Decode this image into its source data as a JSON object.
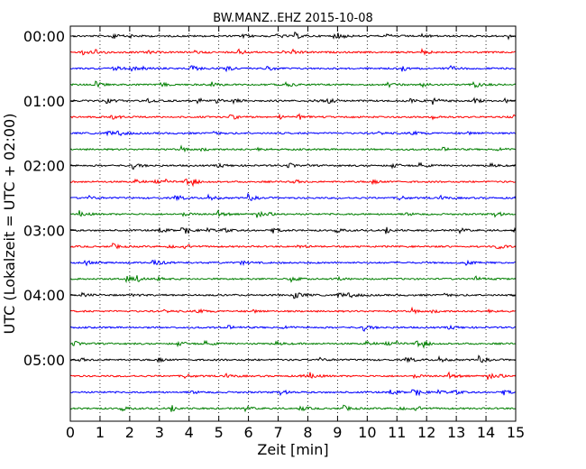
{
  "chart_data": {
    "type": "line",
    "title": "BW.MANZ..EHZ 2015-10-08",
    "xlabel": "Zeit  [min]",
    "ylabel": "UTC (Lokalzeit = UTC + 02:00)",
    "xlim": [
      0,
      15
    ],
    "xticks": [
      "0",
      "1",
      "2",
      "3",
      "4",
      "5",
      "6",
      "7",
      "8",
      "9",
      "10",
      "11",
      "12",
      "13",
      "14",
      "15"
    ],
    "ytick_labels": [
      "00:00",
      "01:00",
      "02:00",
      "03:00",
      "04:00",
      "05:00"
    ],
    "grid": "vertical dotted lines at each minute",
    "traces_per_hour": 4,
    "trace_count": 24,
    "trace_colors": [
      "#000000",
      "#ff0000",
      "#0000ff",
      "#007f00"
    ]
  }
}
